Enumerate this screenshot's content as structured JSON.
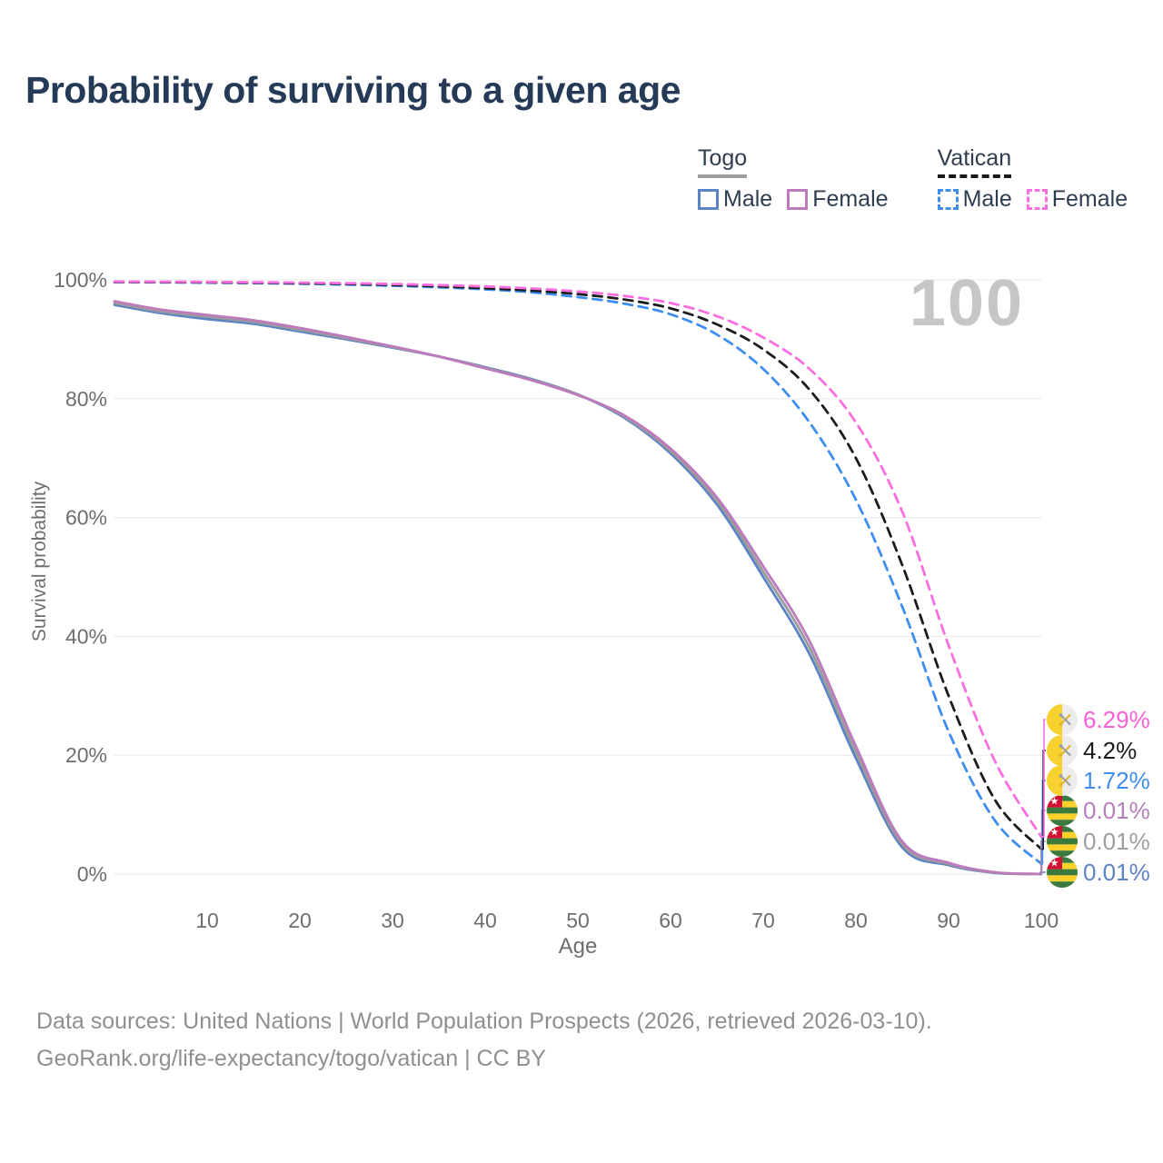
{
  "title": "Probability of surviving to a given age",
  "watermark": "100",
  "legend": {
    "groups": [
      {
        "label": "Togo",
        "line_style": "solid",
        "underline_color": "#9e9e9e",
        "items": [
          {
            "label": "Male",
            "color": "#5b84c4"
          },
          {
            "label": "Female",
            "color": "#bd7abd"
          }
        ]
      },
      {
        "label": "Vatican",
        "line_style": "dashed",
        "underline_color": "#1a1a1a",
        "items": [
          {
            "label": "Male",
            "color": "#3e8def"
          },
          {
            "label": "Female",
            "color": "#fb6ee0"
          }
        ]
      }
    ]
  },
  "chart_data": {
    "type": "line",
    "title": "Probability of surviving to a given age",
    "xlabel": "Age",
    "ylabel": "Survival probability",
    "xlim": [
      0,
      100
    ],
    "ylim": [
      0,
      100
    ],
    "x_ticks": [
      10,
      20,
      30,
      40,
      50,
      60,
      70,
      80,
      90,
      100
    ],
    "y_ticks": [
      0,
      20,
      40,
      60,
      80,
      100
    ],
    "y_tick_suffix": "%",
    "grid": "horizontal",
    "legend_position": "top-right",
    "ages": [
      0,
      5,
      10,
      15,
      20,
      25,
      30,
      35,
      40,
      45,
      50,
      55,
      60,
      65,
      70,
      75,
      80,
      85,
      90,
      95,
      100
    ],
    "series": [
      {
        "name": "Togo Male",
        "country": "Togo",
        "flag": "togo",
        "color": "#5b84c4",
        "dashed": false,
        "end_label": "0.01%",
        "end_color": "#5b84c4",
        "values": [
          95.8,
          94.4,
          93.4,
          92.6,
          91.3,
          90.0,
          88.6,
          87.1,
          85.3,
          83.3,
          80.7,
          76.8,
          70.8,
          62.2,
          50.0,
          37.0,
          19.5,
          4.5,
          1.5,
          0.2,
          0.01
        ]
      },
      {
        "name": "Togo Combined",
        "country": "Togo",
        "flag": "togo",
        "color": "#9b9b9b",
        "dashed": false,
        "end_label": "0.01%",
        "end_color": "#9e9e9e",
        "values": [
          96.1,
          94.7,
          93.8,
          92.9,
          91.6,
          90.2,
          88.7,
          87.1,
          85.2,
          83.2,
          80.7,
          77.0,
          71.2,
          62.8,
          50.9,
          38.1,
          20.5,
          5.0,
          1.7,
          0.25,
          0.01
        ]
      },
      {
        "name": "Togo Female",
        "country": "Togo",
        "flag": "togo",
        "color": "#bd7abd",
        "dashed": false,
        "end_label": "0.01%",
        "end_color": "#b67fbc",
        "values": [
          96.4,
          95.0,
          94.1,
          93.2,
          91.9,
          90.4,
          88.8,
          87.1,
          85.1,
          83.1,
          80.6,
          77.2,
          71.6,
          63.4,
          51.8,
          39.2,
          21.5,
          5.5,
          1.9,
          0.3,
          0.01
        ]
      },
      {
        "name": "Vatican Male",
        "country": "Vatican",
        "flag": "vatican",
        "color": "#3e8def",
        "dashed": true,
        "end_label": "1.72%",
        "end_color": "#3e8def",
        "values": [
          99.6,
          99.57,
          99.52,
          99.45,
          99.35,
          99.2,
          99.0,
          98.75,
          98.4,
          97.9,
          97.1,
          96.0,
          94.2,
          90.8,
          85.0,
          76.0,
          63.0,
          45.0,
          24.0,
          9.0,
          1.72
        ]
      },
      {
        "name": "Vatican Combined",
        "country": "Vatican",
        "flag": "vatican",
        "color": "#1c1c1c",
        "dashed": true,
        "end_label": "4.2%",
        "end_color": "#1c1c1c",
        "values": [
          99.65,
          99.62,
          99.58,
          99.52,
          99.44,
          99.32,
          99.15,
          98.92,
          98.6,
          98.2,
          97.6,
          96.7,
          95.2,
          92.5,
          88.3,
          81.5,
          70.0,
          52.0,
          30.0,
          12.5,
          4.2
        ]
      },
      {
        "name": "Vatican Female",
        "country": "Vatican",
        "flag": "vatican",
        "color": "#fb6ee0",
        "dashed": true,
        "end_label": "6.29%",
        "end_color": "#fb5fd8",
        "values": [
          99.7,
          99.68,
          99.65,
          99.6,
          99.53,
          99.44,
          99.3,
          99.12,
          98.88,
          98.55,
          98.05,
          97.3,
          96.1,
          93.9,
          90.3,
          85.0,
          76.0,
          61.0,
          38.5,
          19.0,
          6.29
        ]
      }
    ]
  },
  "footer": {
    "line1": "Data sources: United Nations | World Population Prospects (2026, retrieved 2026-03-10).",
    "line2": "GeoRank.org/life-expectancy/togo/vatican | CC BY"
  }
}
